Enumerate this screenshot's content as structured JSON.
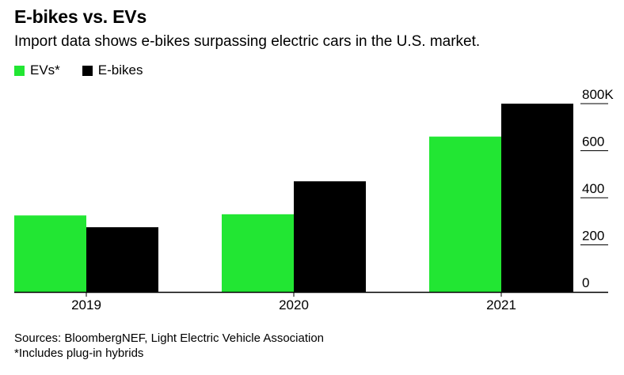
{
  "title": "E-bikes vs. EVs",
  "subtitle": "Import data shows e-bikes surpassing electric cars in the U.S. market.",
  "legend": [
    {
      "label": "EVs*",
      "color": "#22e633"
    },
    {
      "label": "E-bikes",
      "color": "#000000"
    }
  ],
  "footer": {
    "sources": "Sources: BloombergNEF, Light Electric Vehicle Association",
    "note": "*Includes plug-in hybrids"
  },
  "chart_data": {
    "type": "bar",
    "categories": [
      "2019",
      "2020",
      "2021"
    ],
    "series": [
      {
        "name": "EVs*",
        "values": [
          325,
          330,
          660
        ],
        "color": "#22e633"
      },
      {
        "name": "E-bikes",
        "values": [
          275,
          470,
          800
        ],
        "color": "#000000"
      }
    ],
    "ylim": [
      0,
      800
    ],
    "y_ticks": [
      0,
      200,
      400,
      600,
      800
    ],
    "y_tick_labels": [
      "0",
      "200",
      "400",
      "600",
      "800K"
    ],
    "y_axis_side": "right",
    "grid": false
  }
}
